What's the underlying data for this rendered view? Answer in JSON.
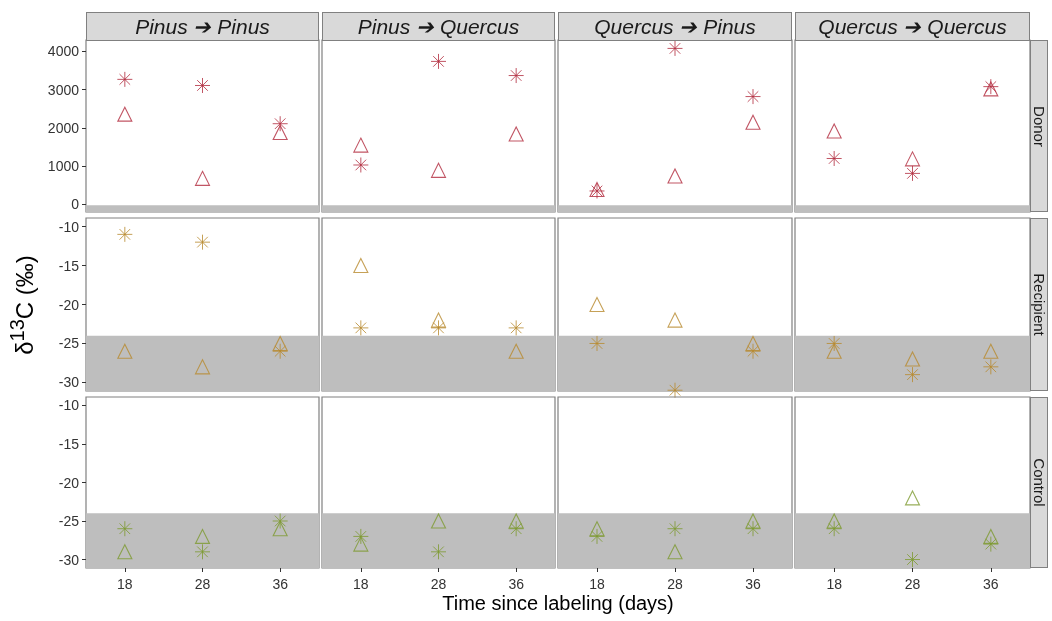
{
  "chart_data": [
    {
      "type": "scatter",
      "title": "Pinus ➔ Pinus",
      "categories": [
        "18",
        "28",
        "36"
      ],
      "ylim": [
        -200,
        4300
      ],
      "yticks": [
        0,
        1000,
        2000,
        3000,
        4000
      ],
      "tick_labels": "y",
      "bands": [
        {
          "axis": "y",
          "from": -200,
          "to": -24,
          "color": "#bebebe"
        }
      ],
      "series": [
        {
          "color": "#b22a3d",
          "marker": "triangle",
          "values": [
            2360,
            680,
            1880
          ]
        },
        {
          "color": "#b22a3d",
          "marker": "cross",
          "values": [
            3270,
            3110,
            2110
          ]
        }
      ]
    },
    {
      "type": "scatter",
      "title": "Pinus ➔ Quercus",
      "categories": [
        "18",
        "28",
        "36"
      ],
      "ylim": [
        -200,
        4300
      ],
      "tick_labels": false,
      "bands": [
        {
          "axis": "y",
          "from": -200,
          "to": -24,
          "color": "#bebebe"
        }
      ],
      "series": [
        {
          "color": "#b22a3d",
          "marker": "triangle",
          "values": [
            1550,
            890,
            1840
          ]
        },
        {
          "color": "#b22a3d",
          "marker": "cross",
          "values": [
            1030,
            3740,
            3370
          ]
        }
      ]
    },
    {
      "type": "scatter",
      "title": "Quercus ➔ Pinus",
      "categories": [
        "18",
        "28",
        "36"
      ],
      "ylim": [
        -200,
        4300
      ],
      "tick_labels": false,
      "bands": [
        {
          "axis": "y",
          "from": -200,
          "to": -24,
          "color": "#bebebe"
        }
      ],
      "series": [
        {
          "color": "#b22a3d",
          "marker": "triangle",
          "values": [
            390,
            740,
            2150
          ]
        },
        {
          "color": "#b22a3d",
          "marker": "cross",
          "values": [
            350,
            4080,
            2820
          ]
        }
      ]
    },
    {
      "type": "scatter",
      "title": "Quercus ➔ Quercus",
      "annotations": [
        "Donor"
      ],
      "categories": [
        "18",
        "28",
        "36"
      ],
      "ylim": [
        -200,
        4300
      ],
      "tick_labels": false,
      "bands": [
        {
          "axis": "y",
          "from": -200,
          "to": -24,
          "color": "#bebebe"
        }
      ],
      "series": [
        {
          "color": "#b22a3d",
          "marker": "triangle",
          "values": [
            1920,
            1190,
            3020
          ]
        },
        {
          "color": "#b22a3d",
          "marker": "cross",
          "values": [
            1200,
            810,
            3080
          ]
        }
      ]
    },
    {
      "type": "scatter",
      "ylabel": "δ$^{13}$C (‰)",
      "categories": [
        "18",
        "28",
        "36"
      ],
      "ylim": [
        -31.1,
        -8.9
      ],
      "yticks": [
        -30,
        -25,
        -20,
        -15,
        -10
      ],
      "tick_labels": "y",
      "bands": [
        {
          "axis": "y",
          "from": -31.1,
          "to": -24,
          "color": "#bebebe"
        }
      ],
      "series": [
        {
          "color": "#b8892d",
          "marker": "triangle",
          "values": [
            -26,
            -28,
            -25
          ]
        },
        {
          "color": "#b8892d",
          "marker": "cross",
          "values": [
            -11,
            -12,
            -26
          ]
        }
      ]
    },
    {
      "type": "scatter",
      "categories": [
        "18",
        "28",
        "36"
      ],
      "ylim": [
        -31.1,
        -8.9
      ],
      "tick_labels": false,
      "bands": [
        {
          "axis": "y",
          "from": -31.1,
          "to": -24,
          "color": "#bebebe"
        }
      ],
      "series": [
        {
          "color": "#b8892d",
          "marker": "triangle",
          "values": [
            -15,
            -22,
            -26
          ]
        },
        {
          "color": "#b8892d",
          "marker": "cross",
          "values": [
            -23,
            -23,
            -23
          ]
        }
      ]
    },
    {
      "type": "scatter",
      "categories": [
        "18",
        "28",
        "36"
      ],
      "ylim": [
        -31.1,
        -8.9
      ],
      "tick_labels": false,
      "bands": [
        {
          "axis": "y",
          "from": -31.1,
          "to": -24,
          "color": "#bebebe"
        }
      ],
      "series": [
        {
          "color": "#b8892d",
          "marker": "triangle",
          "values": [
            -20,
            -22,
            -25
          ]
        },
        {
          "color": "#b8892d",
          "marker": "cross",
          "values": [
            -25,
            -31,
            -26
          ]
        }
      ]
    },
    {
      "type": "scatter",
      "annotations": [
        "Recipient"
      ],
      "categories": [
        "18",
        "28",
        "36"
      ],
      "ylim": [
        -31.1,
        -8.9
      ],
      "tick_labels": false,
      "bands": [
        {
          "axis": "y",
          "from": -31.1,
          "to": -24,
          "color": "#bebebe"
        }
      ],
      "series": [
        {
          "color": "#b8892d",
          "marker": "triangle",
          "values": [
            -26,
            -27,
            -26
          ]
        },
        {
          "color": "#b8892d",
          "marker": "cross",
          "values": [
            -25,
            -29,
            -28
          ]
        }
      ]
    },
    {
      "type": "scatter",
      "categories": [
        "18",
        "28",
        "36"
      ],
      "ylim": [
        -31.1,
        -8.9
      ],
      "yticks": [
        -30,
        -25,
        -20,
        -15,
        -10
      ],
      "bands": [
        {
          "axis": "y",
          "from": -31.1,
          "to": -24,
          "color": "#bebebe"
        }
      ],
      "series": [
        {
          "color": "#7d9a2f",
          "marker": "triangle",
          "values": [
            -29,
            -27,
            -26
          ]
        },
        {
          "color": "#7d9a2f",
          "marker": "cross",
          "values": [
            -26,
            -29,
            -25
          ]
        }
      ]
    },
    {
      "type": "scatter",
      "xlabel": "Time since labeling (days)",
      "categories": [
        "18",
        "28",
        "36"
      ],
      "ylim": [
        -31.1,
        -8.9
      ],
      "tick_labels": "x",
      "bands": [
        {
          "axis": "y",
          "from": -31.1,
          "to": -24,
          "color": "#bebebe"
        }
      ],
      "series": [
        {
          "color": "#7d9a2f",
          "marker": "triangle",
          "values": [
            -28,
            -25,
            -25
          ]
        },
        {
          "color": "#7d9a2f",
          "marker": "cross",
          "values": [
            -27,
            -29,
            -26
          ]
        }
      ]
    },
    {
      "type": "scatter",
      "categories": [
        "18",
        "28",
        "36"
      ],
      "ylim": [
        -31.1,
        -8.9
      ],
      "tick_labels": "x",
      "bands": [
        {
          "axis": "y",
          "from": -31.1,
          "to": -24,
          "color": "#bebebe"
        }
      ],
      "series": [
        {
          "color": "#7d9a2f",
          "marker": "triangle",
          "values": [
            -26,
            -29,
            -25
          ]
        },
        {
          "color": "#7d9a2f",
          "marker": "cross",
          "values": [
            -27,
            -26,
            -26
          ]
        }
      ]
    },
    {
      "type": "scatter",
      "annotations": [
        "Control"
      ],
      "categories": [
        "18",
        "28",
        "36"
      ],
      "ylim": [
        -31.1,
        -8.9
      ],
      "tick_labels": "x",
      "bands": [
        {
          "axis": "y",
          "from": -31.1,
          "to": -24,
          "color": "#bebebe"
        }
      ],
      "series": [
        {
          "color": "#7d9a2f",
          "marker": "triangle",
          "values": [
            -25,
            -22,
            -27
          ]
        },
        {
          "color": "#7d9a2f",
          "marker": "cross",
          "values": [
            -26,
            -30,
            -28
          ]
        }
      ]
    }
  ]
}
